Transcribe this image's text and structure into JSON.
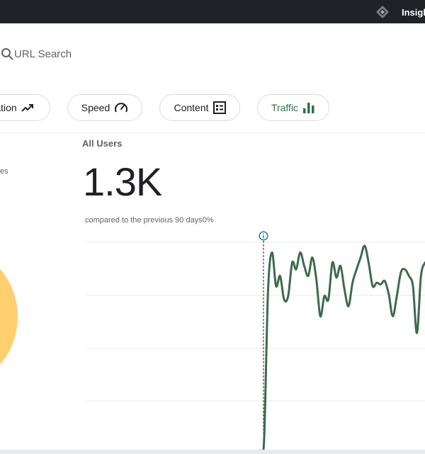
{
  "header": {
    "brand": "Insigh",
    "logo_icon": "diamond-logo-icon"
  },
  "search": {
    "placeholder": "URL Search",
    "icon": "search-icon"
  },
  "tabs": [
    {
      "label": "ation",
      "icon": "trending-up-icon",
      "active": false
    },
    {
      "label": "Speed",
      "icon": "speedometer-icon",
      "active": false
    },
    {
      "label": "Content",
      "icon": "content-list-icon",
      "active": false
    },
    {
      "label": "Traffic",
      "icon": "bar-chart-icon",
      "active": true
    }
  ],
  "left_panel": {
    "note": "es"
  },
  "metric": {
    "title": "All Users",
    "value": "1.3K",
    "comparison": "compared to the previous 90 days0%"
  },
  "colors": {
    "line": "#3d6b4b",
    "accent_green": "#34704a",
    "donut": "#ffcf70",
    "topbar": "#1f2328"
  },
  "chart_data": {
    "type": "line",
    "title": "",
    "xlabel": "",
    "ylabel": "",
    "gridlines": true,
    "marker": "dashed-vertical-line-with-info-icon",
    "series": [
      {
        "values": [
          0,
          5,
          95,
          118,
          98,
          104,
          90,
          92,
          112,
          108,
          118,
          110,
          104,
          115,
          102,
          80,
          92,
          90,
          112,
          103,
          110,
          96,
          86,
          100,
          108,
          115,
          122,
          112,
          98,
          100,
          99,
          101,
          93,
          80,
          92,
          106,
          108,
          104,
          98,
          70,
          104,
          112
        ]
      }
    ]
  }
}
